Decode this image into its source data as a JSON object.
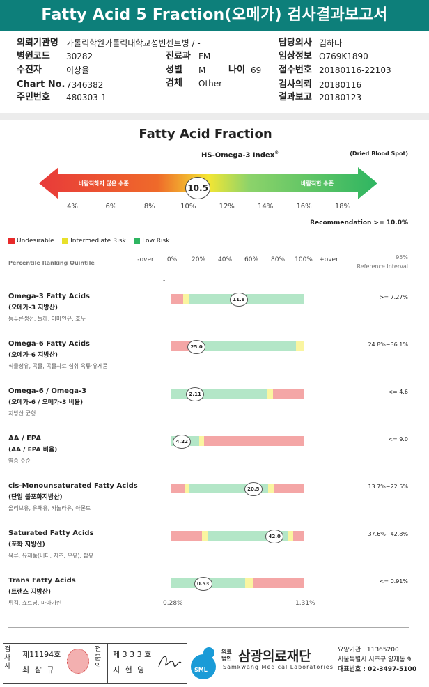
{
  "report_title": "Fatty Acid 5 Fraction(오메가) 검사결과보고서",
  "info": {
    "institution_label": "의뢰기관명",
    "institution_value": "가톨릭학원가톨릭대학교성빈센트병 / -",
    "hospital_code_label": "병원코드",
    "hospital_code_value": "30282",
    "dept_label": "진료과",
    "dept_value": "FM",
    "patient_label": "수진자",
    "patient_value": "이상율",
    "sex_label": "성별",
    "sex_value": "M",
    "age_label": "나이",
    "age_value": "69",
    "chart_label": "Chart No.",
    "chart_value": "7346382",
    "specimen_label": "검체",
    "specimen_value": "Other",
    "id_label": "주민번호",
    "id_value": "480303-1",
    "doctor_label": "담당의사",
    "doctor_value": "김하나",
    "clinical_label": "임상정보",
    "clinical_value": "O769K1890",
    "receipt_label": "접수번호",
    "receipt_value": "20180116-22103",
    "request_label": "검사의뢰",
    "request_value": "20180116",
    "result_label": "결과보고",
    "result_value": "20180123"
  },
  "section_title": "Fatty Acid Fraction",
  "index": {
    "name": "HS-Omega-3 Index",
    "reg_mark": "®",
    "spot": "(Dried Blood Spot)",
    "left_label": "바람직하지 않은 수준",
    "right_label": "바람직한 수준",
    "value": "10.5",
    "value_num": 10.5,
    "ticks": [
      "4%",
      "6%",
      "8%",
      "10%",
      "12%",
      "14%",
      "16%",
      "18%"
    ],
    "recommendation": "Recommendation  >= 10.0%"
  },
  "legend": {
    "undesirable": "Undesirable",
    "intermediate": "Intermediate Risk",
    "low": "Low Risk"
  },
  "colors": {
    "red": "#f4a6a6",
    "yellow": "#faf5a0",
    "green": "#b3e6c7",
    "teal": "#0d7f7a"
  },
  "scale": {
    "header": "Percentile Ranking Quintile",
    "ticks": [
      "-over",
      "0%",
      "20%",
      "40%",
      "60%",
      "80%",
      "100%",
      "+over"
    ],
    "ref_line1": "95%",
    "ref_line2": "Reference Interval",
    "dash": "-"
  },
  "rows": [
    {
      "name": "Omega-3 Fatty Acids",
      "ko": "(오메가-3 지방산)",
      "desc": "등푸른생선, 들깨, 아마인유, 호두",
      "value": "11.8",
      "pos": 0.51,
      "ref": ">= 7.27%",
      "segs": [
        [
          "red",
          0.09
        ],
        [
          "yellow",
          0.04
        ],
        [
          "green",
          0.87
        ]
      ]
    },
    {
      "name": "Omega-6 Fatty Acids",
      "ko": "(오메가-6 지방산)",
      "desc": "식물성유, 곡물, 곡물사료 섭취 육류·유제품",
      "value": "25.0",
      "pos": 0.19,
      "ref": "24.8%~36.1%",
      "segs": [
        [
          "red",
          0.18
        ],
        [
          "yellow",
          0.04
        ],
        [
          "green",
          0.72
        ],
        [
          "yellow",
          0.06
        ]
      ]
    },
    {
      "name": "Omega-6 / Omega-3",
      "ko": "(오메가-6 / 오메가-3 비율)",
      "desc": "지방산 균형",
      "value": "2.11",
      "pos": 0.18,
      "ref": "<= 4.6",
      "segs": [
        [
          "green",
          0.72
        ],
        [
          "yellow",
          0.05
        ],
        [
          "red",
          0.23
        ]
      ]
    },
    {
      "name": "AA / EPA",
      "ko": "(AA / EPA 비율)",
      "desc": "염증 수준",
      "value": "4.22",
      "pos": 0.08,
      "ref": "<= 9.0",
      "segs": [
        [
          "green",
          0.21
        ],
        [
          "yellow",
          0.04
        ],
        [
          "red",
          0.75
        ]
      ]
    },
    {
      "name": "cis-Monounsaturated Fatty Acids",
      "ko": "(단일 불포화지방산)",
      "desc": "올리브유, 유채유, 카놀라유, 아몬드",
      "value": "20.5",
      "pos": 0.62,
      "ref": "13.7%~22.5%",
      "segs": [
        [
          "red",
          0.1
        ],
        [
          "yellow",
          0.03
        ],
        [
          "green",
          0.6
        ],
        [
          "yellow",
          0.05
        ],
        [
          "red",
          0.22
        ]
      ]
    },
    {
      "name": "Saturated Fatty Acids",
      "ko": "(포화 지방산)",
      "desc": "육류, 유제품(버터, 치즈, 우유), 팜유",
      "value": "42.0",
      "pos": 0.78,
      "ref": "37.6%~42.8%",
      "segs": [
        [
          "red",
          0.23
        ],
        [
          "yellow",
          0.05
        ],
        [
          "green",
          0.6
        ],
        [
          "yellow",
          0.04
        ],
        [
          "red",
          0.08
        ]
      ]
    },
    {
      "name": "Trans Fatty Acids",
      "ko": "(트랜스 지방산)",
      "desc": "튀김, 쇼트닝, 마아가린",
      "value": "0.53",
      "pos": 0.24,
      "ref": "<= 0.91%",
      "segs": [
        [
          "green",
          0.56
        ],
        [
          "yellow",
          0.06
        ],
        [
          "red",
          0.38
        ]
      ]
    }
  ],
  "trans_min": "0.28%",
  "trans_max": "1.31%",
  "footer": {
    "tester_label": "검사자",
    "tester_no": "제11194호",
    "tester_name": "최 삼 규",
    "specialist_label": "전문의",
    "specialist_no": "제 3 3 3 호",
    "specialist_name": "지 현 영",
    "corp_small": "의료법인",
    "corp_name": "삼광의료재단",
    "corp_en": "Samkwang Medical Laboratories",
    "logo_text": "SML",
    "agency_no": "요양기관 : 11365200",
    "address": "서울특별시 서초구 양재동 9",
    "phone": "대표번호 : 02-3497-5100"
  }
}
